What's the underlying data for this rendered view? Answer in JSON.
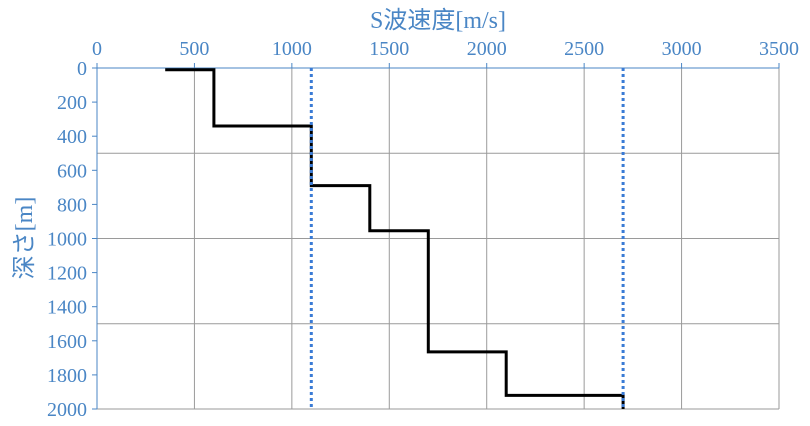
{
  "chart_data": {
    "type": "line",
    "title": "",
    "xlabel": "S波速度[m/s]",
    "ylabel": "深さ[m]",
    "xlim": [
      0,
      3500
    ],
    "ylim": [
      0,
      2000
    ],
    "y_inverted": true,
    "x_axis_position": "top",
    "x_ticks": [
      0,
      500,
      1000,
      1500,
      2000,
      2500,
      3000,
      3500
    ],
    "y_ticks": [
      0,
      200,
      400,
      600,
      800,
      1000,
      1200,
      1400,
      1600,
      1800,
      2000
    ],
    "grid": true,
    "legend": "none",
    "series": [
      {
        "style": "solid",
        "color": "#000000",
        "points": [
          [
            350,
            10
          ],
          [
            600,
            10
          ],
          [
            600,
            340
          ],
          [
            1100,
            340
          ],
          [
            1100,
            690
          ],
          [
            1400,
            690
          ],
          [
            1400,
            955
          ],
          [
            1700,
            955
          ],
          [
            1700,
            1665
          ],
          [
            2100,
            1665
          ],
          [
            2100,
            1920
          ],
          [
            2700,
            1920
          ],
          [
            2700,
            2000
          ]
        ]
      },
      {
        "style": "dotted",
        "color": "#3A7BD5",
        "points": [
          [
            1100,
            0
          ],
          [
            1100,
            2000
          ]
        ]
      },
      {
        "style": "dotted",
        "color": "#3A7BD5",
        "points": [
          [
            2700,
            0
          ],
          [
            2700,
            2000
          ]
        ]
      }
    ],
    "colors": {
      "axis_text": "#4A86C5",
      "grid": "#9A9A9A",
      "axis": "#4A86C5"
    }
  }
}
